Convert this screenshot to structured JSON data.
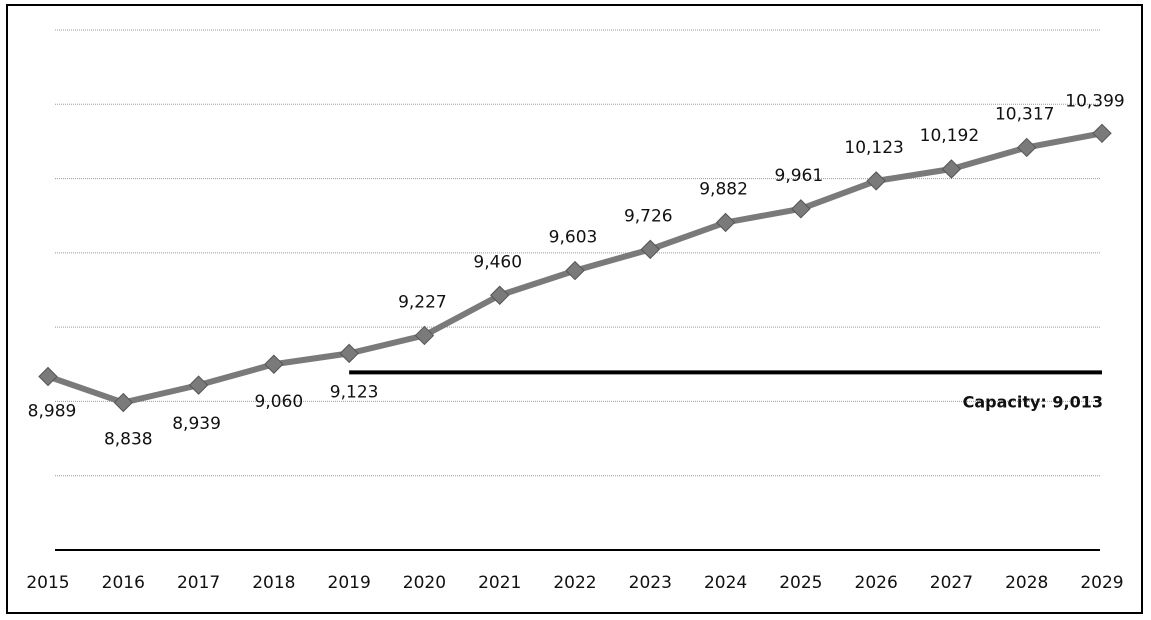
{
  "chart_data": {
    "type": "line",
    "title": "",
    "xlabel": "",
    "ylabel": "",
    "x": [
      "2015",
      "2016",
      "2017",
      "2018",
      "2019",
      "2020",
      "2021",
      "2022",
      "2023",
      "2024",
      "2025",
      "2026",
      "2027",
      "2028",
      "2029"
    ],
    "series": [
      {
        "values": [
          8989,
          8838,
          8939,
          9060,
          9123,
          9227,
          9460,
          9603,
          9726,
          9882,
          9961,
          10123,
          10192,
          10317,
          10399
        ],
        "labels": [
          "8,989",
          "8,838",
          "8,939",
          "9,060",
          "9,123",
          "9,227",
          "9,460",
          "9,603",
          "9,726",
          "9,882",
          "9,961",
          "10,123",
          "10,192",
          "10,317",
          "10,399"
        ]
      }
    ],
    "reference_line": {
      "value": 9013,
      "start_x": "2019",
      "end_x": "2029",
      "label": "Capacity: 9,013"
    },
    "ylim": [
      7983,
      10998
    ],
    "grid": true,
    "legend": "none",
    "colors": {
      "series": "#7a7a7a",
      "reference": "#000000",
      "grid": "#9a9a9a"
    }
  }
}
